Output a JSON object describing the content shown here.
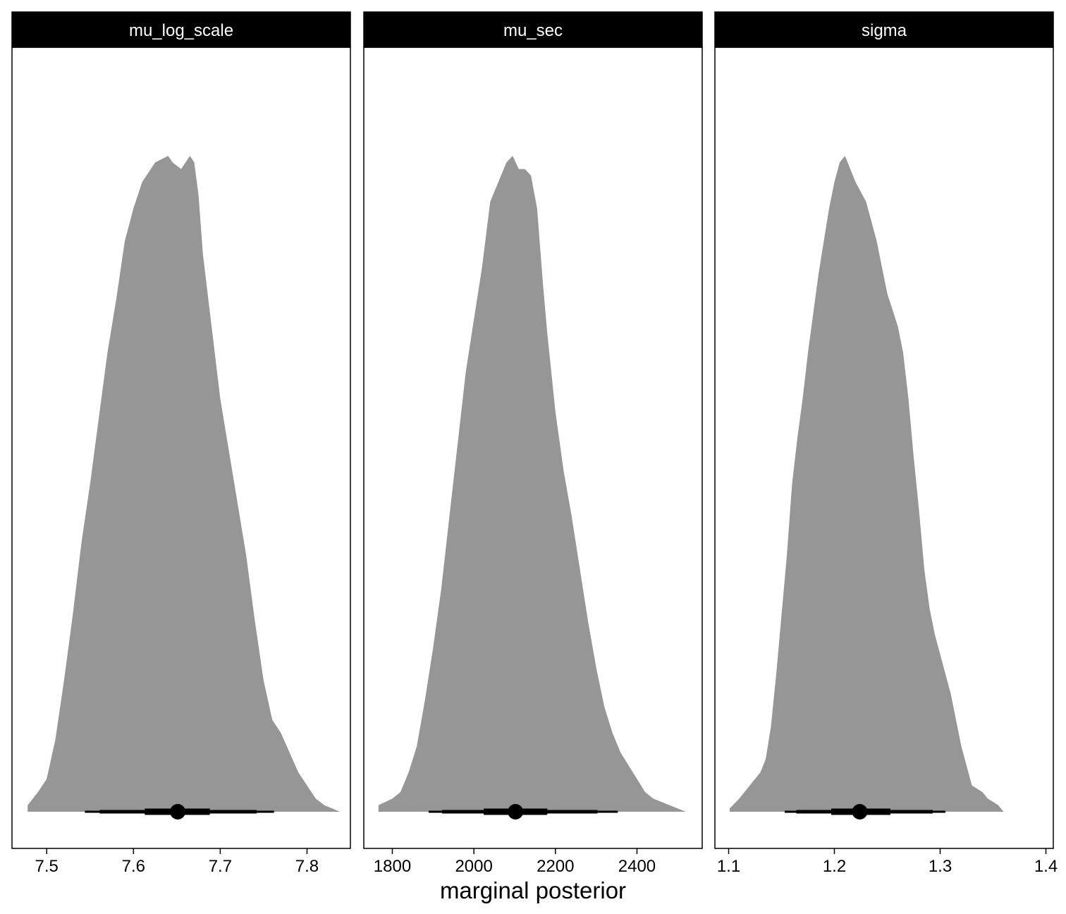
{
  "colors": {
    "density_fill": "#969696",
    "strip_background": "#000000",
    "strip_text": "#ffffff",
    "panel_border": "#000000",
    "interval": "#000000"
  },
  "x_axis_title": "marginal posterior",
  "chart_data": [
    {
      "type": "area",
      "panel": "mu_log_scale",
      "xlim": [
        7.46,
        7.85
      ],
      "x_ticks": [
        7.5,
        7.6,
        7.7,
        7.8
      ],
      "x_tick_labels": [
        "7.5",
        "7.6",
        "7.7",
        "7.8"
      ],
      "grid": false,
      "relative_density": {
        "x": [
          7.478,
          7.49,
          7.5,
          7.51,
          7.52,
          7.53,
          7.54,
          7.55,
          7.56,
          7.57,
          7.58,
          7.59,
          7.6,
          7.61,
          7.625,
          7.64,
          7.645,
          7.655,
          7.665,
          7.67,
          7.675,
          7.68,
          7.69,
          7.7,
          7.71,
          7.72,
          7.73,
          7.74,
          7.75,
          7.76,
          7.77,
          7.78,
          7.79,
          7.8,
          7.81,
          7.82,
          7.838
        ],
        "y": [
          0.01,
          0.03,
          0.05,
          0.11,
          0.2,
          0.3,
          0.41,
          0.5,
          0.6,
          0.7,
          0.78,
          0.87,
          0.92,
          0.96,
          0.99,
          1.0,
          0.99,
          0.98,
          1.0,
          0.99,
          0.94,
          0.85,
          0.74,
          0.63,
          0.55,
          0.47,
          0.39,
          0.29,
          0.2,
          0.14,
          0.12,
          0.09,
          0.06,
          0.04,
          0.02,
          0.01,
          0.0
        ]
      },
      "point_estimate": 7.651,
      "interval_thick": [
        7.613,
        7.688
      ],
      "interval_medium": [
        7.561,
        7.742
      ],
      "interval_thin": [
        7.544,
        7.762
      ]
    },
    {
      "type": "area",
      "panel": "mu_sec",
      "xlim": [
        1730,
        2560
      ],
      "x_ticks": [
        1800,
        2000,
        2200,
        2400
      ],
      "x_tick_labels": [
        "1800",
        "2000",
        "2200",
        "2400"
      ],
      "grid": false,
      "relative_density": {
        "x": [
          1766,
          1800,
          1820,
          1840,
          1860,
          1880,
          1900,
          1920,
          1940,
          1960,
          1980,
          2000,
          2020,
          2040,
          2060,
          2080,
          2095,
          2110,
          2125,
          2140,
          2155,
          2170,
          2180,
          2200,
          2220,
          2240,
          2260,
          2280,
          2300,
          2320,
          2340,
          2360,
          2380,
          2400,
          2420,
          2440,
          2480,
          2520,
          2536
        ],
        "y": [
          0.01,
          0.02,
          0.03,
          0.06,
          0.1,
          0.17,
          0.25,
          0.34,
          0.45,
          0.56,
          0.67,
          0.75,
          0.83,
          0.93,
          0.96,
          0.99,
          1.0,
          0.98,
          0.98,
          0.97,
          0.92,
          0.8,
          0.73,
          0.61,
          0.52,
          0.45,
          0.37,
          0.29,
          0.22,
          0.16,
          0.12,
          0.09,
          0.07,
          0.05,
          0.03,
          0.02,
          0.01,
          0.0,
          0.0
        ]
      },
      "point_estimate": 2102,
      "interval_thick": [
        2024,
        2180
      ],
      "interval_medium": [
        1922,
        2303
      ],
      "interval_thin": [
        1889,
        2353
      ]
    },
    {
      "type": "area",
      "panel": "sigma",
      "xlim": [
        1.087,
        1.407
      ],
      "x_ticks": [
        1.1,
        1.2,
        1.3,
        1.4
      ],
      "x_tick_labels": [
        "1.1",
        "1.2",
        "1.3",
        "1.4"
      ],
      "grid": false,
      "relative_density": {
        "x": [
          1.101,
          1.11,
          1.115,
          1.12,
          1.125,
          1.13,
          1.135,
          1.14,
          1.145,
          1.15,
          1.155,
          1.16,
          1.165,
          1.17,
          1.175,
          1.18,
          1.185,
          1.19,
          1.195,
          1.2,
          1.205,
          1.21,
          1.215,
          1.22,
          1.23,
          1.24,
          1.25,
          1.26,
          1.265,
          1.27,
          1.275,
          1.28,
          1.285,
          1.29,
          1.295,
          1.3,
          1.31,
          1.32,
          1.33,
          1.34,
          1.345,
          1.35,
          1.355,
          1.36,
          1.37,
          1.38,
          1.394
        ],
        "y": [
          0.005,
          0.02,
          0.03,
          0.04,
          0.05,
          0.06,
          0.08,
          0.13,
          0.21,
          0.3,
          0.39,
          0.5,
          0.57,
          0.63,
          0.7,
          0.76,
          0.82,
          0.87,
          0.92,
          0.96,
          0.99,
          1.0,
          0.98,
          0.96,
          0.93,
          0.87,
          0.79,
          0.74,
          0.7,
          0.63,
          0.54,
          0.46,
          0.37,
          0.31,
          0.27,
          0.24,
          0.18,
          0.1,
          0.04,
          0.03,
          0.02,
          0.015,
          0.01,
          0.0,
          0.0,
          0.0,
          0.0
        ]
      },
      "point_estimate": 1.224,
      "interval_thick": [
        1.197,
        1.253
      ],
      "interval_medium": [
        1.164,
        1.293
      ],
      "interval_thin": [
        1.153,
        1.305
      ]
    }
  ]
}
